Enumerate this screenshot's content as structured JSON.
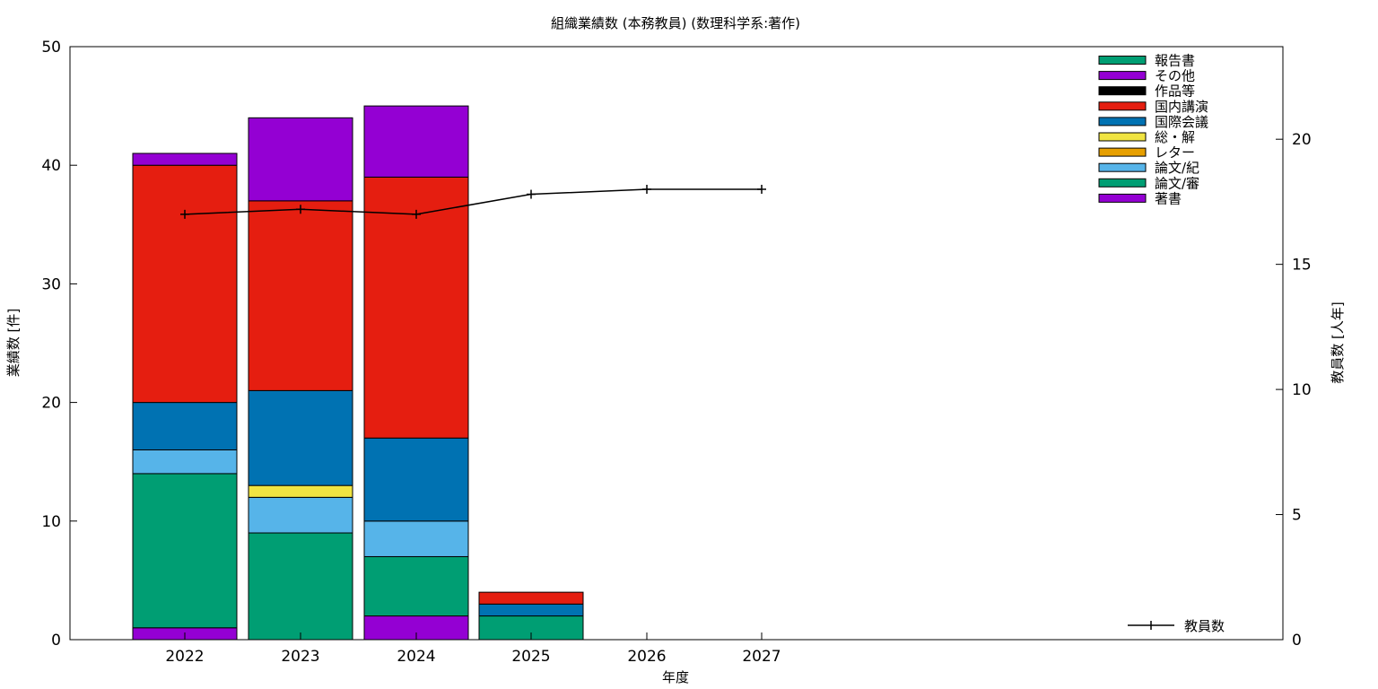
{
  "chart_data": {
    "type": "bar",
    "stacked": true,
    "title": "組織業績数 (本務教員) (数理科学系:著作)",
    "xlabel": "年度",
    "ylabel": "業績数 [件]",
    "y2label": "教員数 [人年]",
    "categories": [
      "2022",
      "2023",
      "2024",
      "2025",
      "2026",
      "2027"
    ],
    "ylim": [
      0,
      50
    ],
    "y2lim": [
      0,
      23.7
    ],
    "yticks": [
      0,
      10,
      20,
      30,
      40,
      50
    ],
    "y2ticks": [
      0,
      5,
      10,
      15,
      20
    ],
    "grid": false,
    "legend_position": "top-right",
    "series": [
      {
        "name": "著書",
        "color": "#9400d3",
        "values": [
          1,
          0,
          2,
          0,
          0,
          0
        ]
      },
      {
        "name": "論文/審",
        "color": "#009e73",
        "values": [
          13,
          9,
          5,
          2,
          0,
          0
        ]
      },
      {
        "name": "論文/紀",
        "color": "#56b4e9",
        "values": [
          2,
          3,
          3,
          0,
          0,
          0
        ]
      },
      {
        "name": "レター",
        "color": "#e69f00",
        "values": [
          0,
          0,
          0,
          0,
          0,
          0
        ]
      },
      {
        "name": "総・解",
        "color": "#f0e442",
        "values": [
          0,
          1,
          0,
          0,
          0,
          0
        ]
      },
      {
        "name": "国際会議",
        "color": "#0072b2",
        "values": [
          4,
          8,
          7,
          1,
          0,
          0
        ]
      },
      {
        "name": "国内講演",
        "color": "#e51e10",
        "values": [
          20,
          16,
          22,
          1,
          0,
          0
        ]
      },
      {
        "name": "作品等",
        "color": "#000000",
        "values": [
          0,
          0,
          0,
          0,
          0,
          0
        ]
      },
      {
        "name": "その他",
        "color": "#9400d3",
        "values": [
          1,
          7,
          6,
          0,
          0,
          0
        ]
      },
      {
        "name": "報告書",
        "color": "#009e73",
        "values": [
          0,
          0,
          0,
          0,
          0,
          0
        ]
      }
    ],
    "line_series": {
      "name": "教員数",
      "color": "#000000",
      "axis": "right",
      "values": [
        17.0,
        17.2,
        17.0,
        17.8,
        18.0,
        18.0
      ]
    }
  }
}
